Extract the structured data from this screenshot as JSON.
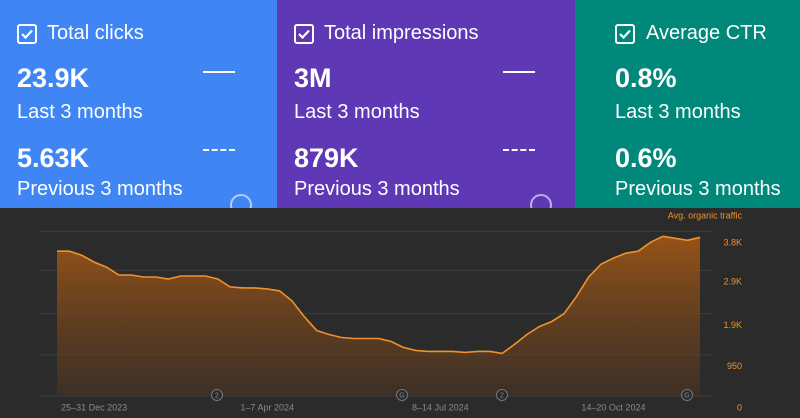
{
  "cards": [
    {
      "title": "Total clicks",
      "current": "23.9K",
      "current_label": "Last 3 months",
      "previous": "5.63K",
      "previous_label": "Previous 3 months"
    },
    {
      "title": "Total impressions",
      "current": "3M",
      "current_label": "Last 3 months",
      "previous": "879K",
      "previous_label": "Previous 3 months"
    },
    {
      "title": "Average CTR",
      "current": "0.8%",
      "current_label": "Last 3 months",
      "previous": "0.6%",
      "previous_label": "Previous 3 months"
    }
  ],
  "chart_data": {
    "type": "area",
    "title": "Avg. organic traffic",
    "color": "#f0922b",
    "categories": [
      null,
      null,
      null,
      "25–31 Dec 2023",
      null,
      null,
      null,
      null,
      null,
      null,
      null,
      null,
      null,
      null,
      null,
      null,
      null,
      "1–7 Apr 2024",
      null,
      null,
      null,
      null,
      null,
      null,
      null,
      null,
      null,
      null,
      null,
      null,
      null,
      "8–14 Jul 2024",
      null,
      null,
      null,
      null,
      null,
      null,
      null,
      null,
      null,
      null,
      null,
      null,
      null,
      "14–20 Oct 2024",
      null,
      null,
      null,
      null,
      null,
      null,
      null
    ],
    "values": [
      3342,
      3342,
      3250,
      3090,
      2975,
      2792,
      2792,
      2747,
      2747,
      2701,
      2770,
      2770,
      2770,
      2701,
      2518,
      2495,
      2495,
      2472,
      2426,
      2197,
      1831,
      1511,
      1419,
      1350,
      1327,
      1327,
      1327,
      1259,
      1121,
      1053,
      1030,
      1030,
      1030,
      1007,
      1030,
      1030,
      984,
      1190,
      1419,
      1602,
      1716,
      1900,
      2289,
      2747,
      3044,
      3182,
      3296,
      3342,
      3548,
      3685,
      3639,
      3593,
      3662
    ],
    "ylim": [
      0,
      4200
    ],
    "yticks": [
      0,
      950,
      {
        "value": 1900,
        "label": "1.9K"
      },
      {
        "value": 2900,
        "label": "2.9K"
      },
      {
        "value": 3800,
        "label": "3.8K"
      }
    ],
    "grid": true,
    "annotations": [
      "2",
      "G",
      "2",
      "G"
    ]
  }
}
